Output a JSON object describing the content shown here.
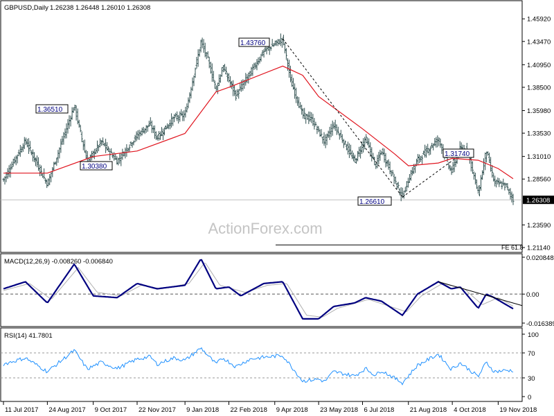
{
  "header": {
    "symbol": "GBPUSD,Daily",
    "ohlc": "1.26238 1.26448 1.26010 1.26308"
  },
  "watermark": "ActionForex.com",
  "colors": {
    "bars": "#2f4f4f",
    "ma": "#e0141e",
    "macd": "#000080",
    "signal": "#b0b0b0",
    "rsi": "#1e90ff",
    "last_price_bg": "#000000",
    "frame": "#000000",
    "grid": "#c0c0c0"
  },
  "labels": {
    "high_2018": "1.43760",
    "high_2017": "1.36510",
    "low_2017": "1.30380",
    "low_aug": "1.26610",
    "high_sep": "1.31740",
    "last_price": "1.26308",
    "fe": "FE 61.8"
  },
  "chart_data": [
    {
      "type": "candlestick",
      "title": "GBPUSD,Daily",
      "ylim": [
        1.2114,
        1.4676
      ],
      "yticks": [
        "1.45920",
        "1.43470",
        "1.40950",
        "1.38500",
        "1.35980",
        "1.33530",
        "1.31010",
        "1.28560",
        "1.26308",
        "1.23590",
        "1.21140"
      ],
      "xticks": [
        "11 Jul 2017",
        "24 Aug 2017",
        "9 Oct 2017",
        "22 Nov 2017",
        "9 Jan 2018",
        "22 Feb 2018",
        "9 Apr 2018",
        "23 May 2018",
        "6 Jul 2018",
        "21 Aug 2018",
        "4 Oct 2018",
        "19 Nov 2018"
      ],
      "series": [
        {
          "price_keypoints": [
            [
              "11 Jul 2017",
              1.285
            ],
            [
              "2 Aug 2017",
              1.327
            ],
            [
              "24 Aug 2017",
              1.28
            ],
            [
              "20 Sep 2017",
              1.3651
            ],
            [
              "3 Oct 2017",
              1.3038
            ],
            [
              "17 Oct 2017",
              1.326
            ],
            [
              "2 Nov 2017",
              1.305
            ],
            [
              "22 Nov 2017",
              1.333
            ],
            [
              "5 Dec 2017",
              1.345
            ],
            [
              "12 Dec 2017",
              1.33
            ],
            [
              "29 Dec 2017",
              1.352
            ],
            [
              "9 Jan 2018",
              1.355
            ],
            [
              "25 Jan 2018",
              1.434
            ],
            [
              "1 Feb 2018",
              1.415
            ],
            [
              "9 Feb 2018",
              1.383
            ],
            [
              "16 Feb 2018",
              1.407
            ],
            [
              "1 Mar 2018",
              1.376
            ],
            [
              "15 Mar 2018",
              1.4
            ],
            [
              "29 Mar 2018",
              1.424
            ],
            [
              "17 Apr 2018",
              1.4376
            ],
            [
              "25 Apr 2018",
              1.392
            ],
            [
              "7 May 2018",
              1.355
            ],
            [
              "16 May 2018",
              1.35
            ],
            [
              "29 May 2018",
              1.326
            ],
            [
              "7 Jun 2018",
              1.345
            ],
            [
              "28 Jun 2018",
              1.305
            ],
            [
              "9 Jul 2018",
              1.33
            ],
            [
              "19 Jul 2018",
              1.3
            ],
            [
              "25 Jul 2018",
              1.316
            ],
            [
              "15 Aug 2018",
              1.2661
            ],
            [
              "22 Aug 2018",
              1.288
            ],
            [
              "30 Aug 2018",
              1.306
            ],
            [
              "20 Sep 2018",
              1.329
            ],
            [
              "3 Oct 2018",
              1.293
            ],
            [
              "12 Oct 2018",
              1.319
            ],
            [
              "19 Oct 2018",
              1.3174
            ],
            [
              "30 Oct 2018",
              1.27
            ],
            [
              "7 Nov 2018",
              1.317
            ],
            [
              "15 Nov 2018",
              1.282
            ],
            [
              "27 Nov 2018",
              1.278
            ],
            [
              "4 Dec 2018",
              1.26308
            ]
          ]
        },
        {
          "ma_keypoints": [
            [
              "11 Jul 2017",
              1.292
            ],
            [
              "24 Aug 2017",
              1.292
            ],
            [
              "9 Oct 2017",
              1.31
            ],
            [
              "22 Nov 2017",
              1.316
            ],
            [
              "9 Jan 2018",
              1.335
            ],
            [
              "9 Feb 2018",
              1.38
            ],
            [
              "22 Feb 2018",
              1.385
            ],
            [
              "17 Apr 2018",
              1.408
            ],
            [
              "7 May 2018",
              1.398
            ],
            [
              "23 May 2018",
              1.375
            ],
            [
              "6 Jul 2018",
              1.34
            ],
            [
              "7 Aug 2018",
              1.313
            ],
            [
              "21 Aug 2018",
              1.3
            ],
            [
              "20 Sep 2018",
              1.303
            ],
            [
              "4 Oct 2018",
              1.308
            ],
            [
              "30 Oct 2018",
              1.306
            ],
            [
              "19 Nov 2018",
              1.297
            ],
            [
              "4 Dec 2018",
              1.286
            ]
          ]
        }
      ],
      "annotations": [
        {
          "text": "1.43760",
          "date": "17 Apr 2018",
          "value": 1.4376
        },
        {
          "text": "1.36510",
          "date": "20 Sep 2017",
          "value": 1.3651
        },
        {
          "text": "1.30380",
          "date": "3 Oct 2017",
          "value": 1.3038
        },
        {
          "text": "1.26610",
          "date": "15 Aug 2018",
          "value": 1.2661
        },
        {
          "text": "1.31740",
          "date": "19 Oct 2018",
          "value": 1.3174
        },
        {
          "text": "FE 61.8",
          "value": 1.2142
        }
      ]
    },
    {
      "type": "line",
      "title": "MACD(12,26,9) -0.008260 -0.006840",
      "ylim": [
        -0.01639,
        0.020848
      ],
      "yticks": [
        "0.020848",
        "0.00",
        "-0.016389"
      ],
      "series": [
        {
          "name": "MACD",
          "keypoints": [
            [
              "11 Jul 2017",
              0.003
            ],
            [
              "2 Aug 2017",
              0.007
            ],
            [
              "24 Aug 2017",
              -0.005
            ],
            [
              "20 Sep 2017",
              0.017
            ],
            [
              "9 Oct 2017",
              -0.001
            ],
            [
              "2 Nov 2017",
              -0.002
            ],
            [
              "22 Nov 2017",
              0.006
            ],
            [
              "12 Dec 2017",
              0.003
            ],
            [
              "9 Jan 2018",
              0.005
            ],
            [
              "25 Jan 2018",
              0.02
            ],
            [
              "9 Feb 2018",
              0.003
            ],
            [
              "22 Feb 2018",
              0.004
            ],
            [
              "6 Mar 2018",
              -0.001
            ],
            [
              "29 Mar 2018",
              0.006
            ],
            [
              "17 Apr 2018",
              0.007
            ],
            [
              "7 May 2018",
              -0.014
            ],
            [
              "23 May 2018",
              -0.014
            ],
            [
              "7 Jun 2018",
              -0.007
            ],
            [
              "28 Jun 2018",
              -0.005
            ],
            [
              "9 Jul 2018",
              -0.002
            ],
            [
              "25 Jul 2018",
              -0.004
            ],
            [
              "15 Aug 2018",
              -0.012
            ],
            [
              "30 Aug 2018",
              0.0
            ],
            [
              "20 Sep 2018",
              0.007
            ],
            [
              "3 Oct 2018",
              0.003
            ],
            [
              "12 Oct 2018",
              0.004
            ],
            [
              "30 Oct 2018",
              -0.008
            ],
            [
              "7 Nov 2018",
              0.0
            ],
            [
              "15 Nov 2018",
              -0.002
            ],
            [
              "27 Nov 2018",
              -0.006
            ],
            [
              "4 Dec 2018",
              -0.00826
            ]
          ]
        },
        {
          "name": "Signal",
          "keypoints": [
            [
              "11 Jul 2017",
              0.002
            ],
            [
              "6 Aug 2017",
              0.006
            ],
            [
              "28 Aug 2017",
              -0.003
            ],
            [
              "24 Sep 2017",
              0.015
            ],
            [
              "13 Oct 2017",
              0.001
            ],
            [
              "6 Nov 2017",
              -0.001
            ],
            [
              "26 Nov 2017",
              0.005
            ],
            [
              "16 Dec 2017",
              0.003
            ],
            [
              "13 Jan 2018",
              0.006
            ],
            [
              "29 Jan 2018",
              0.018
            ],
            [
              "13 Feb 2018",
              0.005
            ],
            [
              "10 Mar 2018",
              0.001
            ],
            [
              "2 Apr 2018",
              0.005
            ],
            [
              "21 Apr 2018",
              0.006
            ],
            [
              "11 May 2018",
              -0.012
            ],
            [
              "27 May 2018",
              -0.013
            ],
            [
              "11 Jun 2018",
              -0.008
            ],
            [
              "12 Jul 2018",
              -0.003
            ],
            [
              "19 Aug 2018",
              -0.01
            ],
            [
              "3 Sep 2018",
              -0.001
            ],
            [
              "24 Sep 2018",
              0.006
            ],
            [
              "16 Oct 2018",
              0.003
            ],
            [
              "3 Nov 2018",
              -0.006
            ],
            [
              "19 Nov 2018",
              -0.002
            ],
            [
              "4 Dec 2018",
              -0.00684
            ]
          ]
        }
      ]
    },
    {
      "type": "line",
      "title": "RSI(14) 41.7801",
      "ylim": [
        0,
        100
      ],
      "yticks": [
        "100",
        "70",
        "30",
        "0"
      ],
      "series": [
        {
          "name": "RSI",
          "keypoints": [
            [
              "11 Jul 2017",
              52
            ],
            [
              "24 Jul 2017",
              58
            ],
            [
              "2 Aug 2017",
              62
            ],
            [
              "24 Aug 2017",
              40
            ],
            [
              "20 Sep 2017",
              74
            ],
            [
              "3 Oct 2017",
              44
            ],
            [
              "17 Oct 2017",
              55
            ],
            [
              "2 Nov 2017",
              45
            ],
            [
              "22 Nov 2017",
              60
            ],
            [
              "5 Dec 2017",
              64
            ],
            [
              "12 Dec 2017",
              52
            ],
            [
              "29 Dec 2017",
              62
            ],
            [
              "9 Jan 2018",
              58
            ],
            [
              "25 Jan 2018",
              78
            ],
            [
              "9 Feb 2018",
              52
            ],
            [
              "16 Feb 2018",
              62
            ],
            [
              "1 Mar 2018",
              48
            ],
            [
              "15 Mar 2018",
              60
            ],
            [
              "29 Mar 2018",
              63
            ],
            [
              "17 Apr 2018",
              66
            ],
            [
              "7 May 2018",
              25
            ],
            [
              "23 May 2018",
              28
            ],
            [
              "29 May 2018",
              24
            ],
            [
              "7 Jun 2018",
              40
            ],
            [
              "28 Jun 2018",
              33
            ],
            [
              "9 Jul 2018",
              45
            ],
            [
              "19 Jul 2018",
              34
            ],
            [
              "25 Jul 2018",
              42
            ],
            [
              "15 Aug 2018",
              22
            ],
            [
              "30 Aug 2018",
              50
            ],
            [
              "20 Sep 2018",
              68
            ],
            [
              "3 Oct 2018",
              44
            ],
            [
              "12 Oct 2018",
              54
            ],
            [
              "30 Oct 2018",
              32
            ],
            [
              "7 Nov 2018",
              55
            ],
            [
              "15 Nov 2018",
              40
            ],
            [
              "27 Nov 2018",
              42
            ],
            [
              "4 Dec 2018",
              41.7801
            ]
          ]
        }
      ]
    }
  ]
}
